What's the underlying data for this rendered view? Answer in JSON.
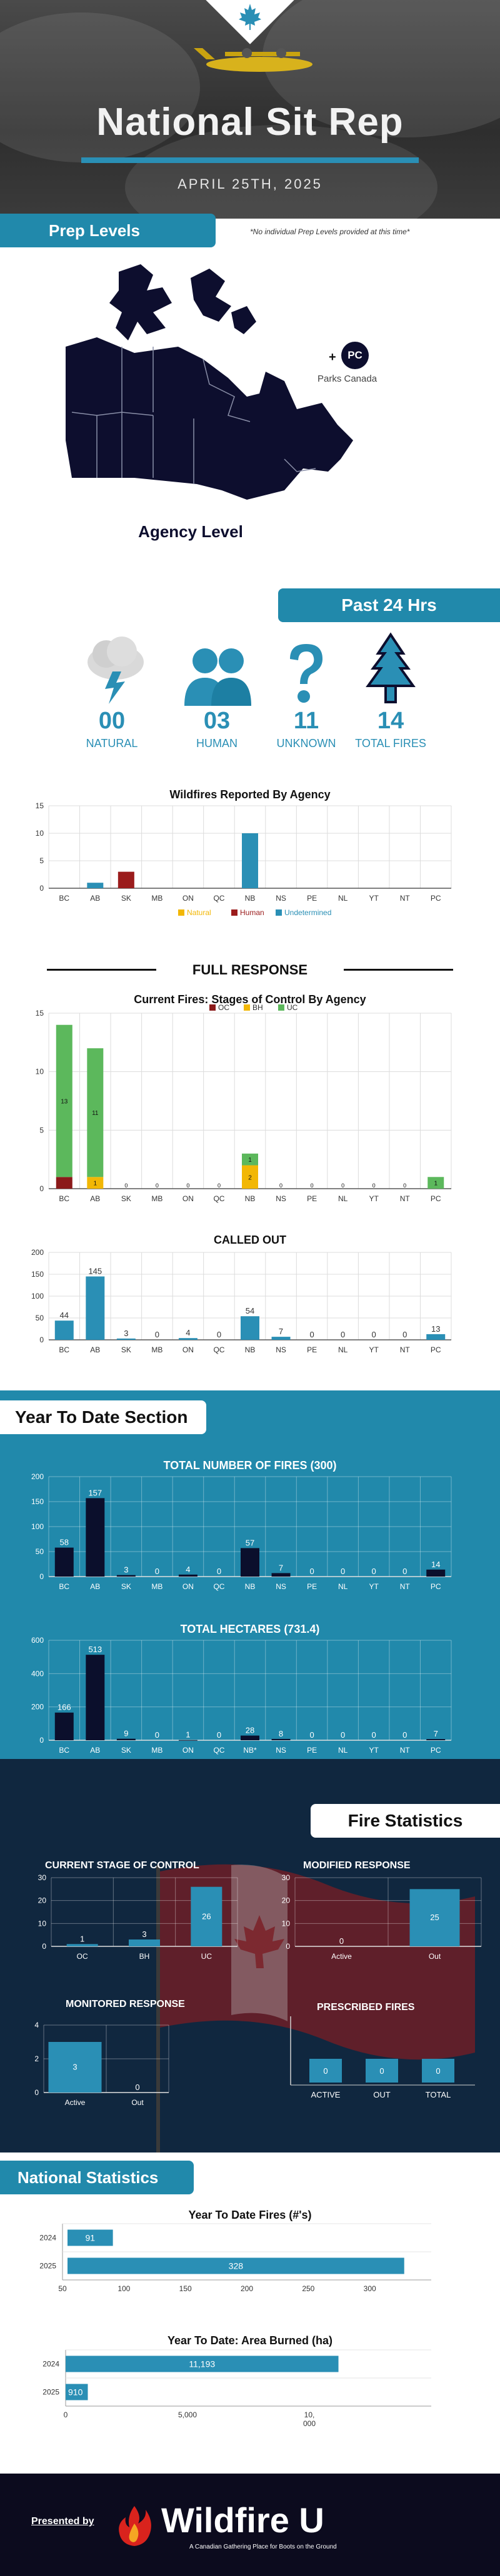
{
  "header": {
    "title": "National Sit Rep",
    "date": "APRIL 25TH, 2025"
  },
  "prep_levels": {
    "tab_label": "Prep Levels",
    "note": "*No individual Prep Levels provided at this time*",
    "pc_badge": "PC",
    "pc_plus": "+",
    "pc_label": "Parks Canada",
    "map_label": "Agency Level"
  },
  "past_24": {
    "tab_label": "Past 24 Hrs",
    "stats": [
      {
        "value": "00",
        "label": "NATURAL",
        "icon": "lightning-cloud-icon"
      },
      {
        "value": "03",
        "label": "HUMAN",
        "icon": "people-icon"
      },
      {
        "value": "11",
        "label": "UNKNOWN",
        "icon": "question-mark-icon"
      },
      {
        "value": "14",
        "label": "TOTAL FIRES",
        "icon": "tree-icon"
      }
    ]
  },
  "colors": {
    "accent": "#2189ab",
    "natural": "#f2b705",
    "human": "#9b1c1c",
    "undetermined": "#2a8fb5",
    "oc": "#8b1a1a",
    "bh": "#f2b705",
    "uc": "#5cb85c",
    "dark_bar": "#0b0f2c"
  },
  "full_response_heading": "FULL RESPONSE",
  "ytd": {
    "tab_label": "Year To Date Section"
  },
  "fire_statistics": {
    "tab_label": "Fire Statistics"
  },
  "national_statistics": {
    "tab_label": "National Statistics"
  },
  "footer": {
    "presented_by": "Presented by",
    "brand": "Wildfire U",
    "tagline": "A Canadian Gathering Place for Boots on the Ground"
  },
  "chart_data": [
    {
      "id": "reported_by_agency",
      "type": "bar",
      "title": "Wildfires Reported By Agency",
      "categories": [
        "BC",
        "AB",
        "SK",
        "MB",
        "ON",
        "QC",
        "NB",
        "NS",
        "PE",
        "NL",
        "YT",
        "NT",
        "PC"
      ],
      "series": [
        {
          "name": "Natural",
          "values": [
            0,
            0,
            0,
            0,
            0,
            0,
            0,
            0,
            0,
            0,
            0,
            0,
            0
          ]
        },
        {
          "name": "Human",
          "values": [
            0,
            0,
            3,
            0,
            0,
            0,
            0,
            0,
            0,
            0,
            0,
            0,
            0
          ]
        },
        {
          "name": "Undetermined",
          "values": [
            0,
            1,
            0,
            0,
            0,
            0,
            10,
            0,
            0,
            0,
            0,
            0,
            0
          ]
        }
      ],
      "ylim": [
        0,
        15
      ],
      "yticks": [
        0,
        5,
        10,
        15
      ]
    },
    {
      "id": "stages_of_control",
      "type": "bar",
      "stacked": true,
      "title": "Current Fires: Stages of Control By Agency",
      "categories": [
        "BC",
        "AB",
        "SK",
        "MB",
        "ON",
        "QC",
        "NB",
        "NS",
        "PE",
        "NL",
        "YT",
        "NT",
        "PC"
      ],
      "series": [
        {
          "name": "OC",
          "values": [
            1,
            0,
            0,
            0,
            0,
            0,
            0,
            0,
            0,
            0,
            0,
            0,
            0
          ]
        },
        {
          "name": "BH",
          "values": [
            0,
            1,
            0,
            0,
            0,
            0,
            2,
            0,
            0,
            0,
            0,
            0,
            0
          ]
        },
        {
          "name": "UC",
          "values": [
            13,
            11,
            0,
            0,
            0,
            0,
            1,
            0,
            0,
            0,
            0,
            0,
            1
          ]
        }
      ],
      "data_labels": [
        {
          "category": "BC",
          "series": "UC",
          "text": "13"
        },
        {
          "category": "AB",
          "series": "BH",
          "text": "1"
        },
        {
          "category": "AB",
          "series": "UC",
          "text": "11"
        },
        {
          "category": "NB",
          "series": "BH",
          "text": "2"
        },
        {
          "category": "NB",
          "series": "UC",
          "text": "1"
        },
        {
          "category": "PC",
          "series": "UC",
          "text": "1"
        }
      ],
      "zero_labels": [
        "0",
        "0",
        "0",
        "0",
        "0",
        "0",
        "0",
        "0",
        "0",
        "0",
        "0"
      ],
      "ylim": [
        0,
        15
      ],
      "yticks": [
        0,
        5,
        10,
        15
      ]
    },
    {
      "id": "called_out",
      "type": "bar",
      "title": "CALLED OUT",
      "categories": [
        "BC",
        "AB",
        "SK",
        "MB",
        "ON",
        "QC",
        "NB",
        "NS",
        "PE",
        "NL",
        "YT",
        "NT",
        "PC"
      ],
      "values": [
        44,
        145,
        3,
        0,
        4,
        0,
        54,
        7,
        0,
        0,
        0,
        0,
        13
      ],
      "labels": [
        "44",
        "145",
        "3",
        "0",
        "4",
        "0",
        "54",
        "7",
        "0",
        "0",
        "0",
        "0",
        "13"
      ],
      "ylim": [
        0,
        200
      ],
      "yticks": [
        0,
        50,
        100,
        150,
        200
      ]
    },
    {
      "id": "ytd_number_of_fires",
      "type": "bar",
      "title": "TOTAL NUMBER OF FIRES (300)",
      "categories": [
        "BC",
        "AB",
        "SK",
        "MB",
        "ON",
        "QC",
        "NB",
        "NS",
        "PE",
        "NL",
        "YT",
        "NT",
        "PC"
      ],
      "values": [
        58,
        157,
        3,
        0,
        4,
        0,
        57,
        7,
        0,
        0,
        0,
        0,
        14
      ],
      "labels": [
        "58",
        "157",
        "3",
        "0",
        "4",
        "0",
        "57",
        "7",
        "0",
        "0",
        "0",
        "0",
        "14"
      ],
      "ylim": [
        0,
        200
      ],
      "yticks": [
        0,
        50,
        100,
        150,
        200
      ]
    },
    {
      "id": "ytd_hectares",
      "type": "bar",
      "title": "TOTAL HECTARES (731.4)",
      "categories": [
        "BC",
        "AB",
        "SK",
        "MB",
        "ON",
        "QC",
        "NB*",
        "NS",
        "PE",
        "NL",
        "YT",
        "NT",
        "PC"
      ],
      "values": [
        166,
        513,
        9,
        0,
        1,
        0,
        28,
        8,
        0,
        0,
        0,
        0,
        7
      ],
      "labels": [
        "166",
        "513",
        "9",
        "0",
        "1",
        "0",
        "28",
        "8",
        "0",
        "0",
        "0",
        "0",
        "7"
      ],
      "ylim": [
        0,
        600
      ],
      "yticks": [
        0,
        200,
        400,
        600
      ]
    },
    {
      "id": "current_stage_of_control",
      "type": "bar",
      "title": "CURRENT STAGE OF CONTROL",
      "categories": [
        "OC",
        "BH",
        "UC"
      ],
      "values": [
        1,
        3,
        26
      ],
      "labels": [
        "1",
        "3",
        "26"
      ],
      "ylim": [
        0,
        30
      ],
      "yticks": [
        0,
        10,
        20,
        30
      ]
    },
    {
      "id": "modified_response",
      "type": "bar",
      "title": "MODIFIED RESPONSE",
      "categories": [
        "Active",
        "Out"
      ],
      "values": [
        0,
        25
      ],
      "labels": [
        "0",
        "25"
      ],
      "ylim": [
        0,
        30
      ],
      "yticks": [
        0,
        10,
        20,
        30
      ]
    },
    {
      "id": "monitored_response",
      "type": "bar",
      "title": "MONITORED RESPONSE",
      "categories": [
        "Active",
        "Out"
      ],
      "values": [
        3,
        0
      ],
      "labels": [
        "3",
        "0"
      ],
      "ylim": [
        0,
        4
      ],
      "yticks": [
        0,
        2,
        4
      ]
    },
    {
      "id": "prescribed_fires",
      "type": "bar",
      "title": "PRESCRIBED FIRES",
      "categories": [
        "ACTIVE",
        "OUT",
        "TOTAL"
      ],
      "values": [
        0,
        0,
        0
      ],
      "labels": [
        "0",
        "0",
        "0"
      ]
    },
    {
      "id": "ytd_fires_count",
      "type": "bar",
      "orientation": "horizontal",
      "title": "Year To Date Fires (#'s)",
      "categories": [
        "2024",
        "2025"
      ],
      "values": [
        91,
        328
      ],
      "labels": [
        "91",
        "328"
      ],
      "xlim": [
        50,
        350
      ],
      "xticks": [
        50,
        100,
        150,
        200,
        250,
        300
      ]
    },
    {
      "id": "ytd_area_burned",
      "type": "bar",
      "orientation": "horizontal",
      "title": "Year To Date: Area Burned (ha)",
      "categories": [
        "2024",
        "2025"
      ],
      "values": [
        11193,
        910
      ],
      "labels": [
        "11,193",
        "910"
      ],
      "xlim": [
        0,
        15000
      ],
      "xticks": [
        0,
        5000,
        10000
      ],
      "xtick_labels": [
        "0",
        "5,000",
        "10,\n000"
      ]
    }
  ]
}
